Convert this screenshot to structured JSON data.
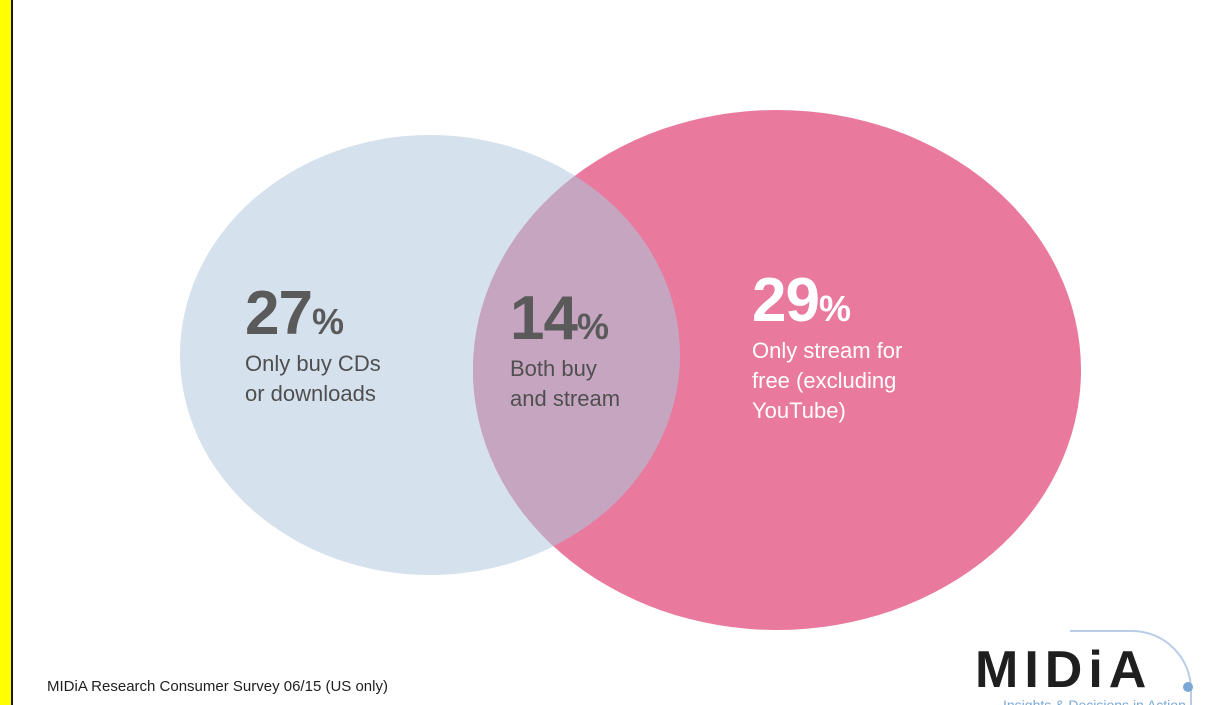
{
  "colors": {
    "left_circle": "#d5e1ed",
    "right_circle": "#e9799d",
    "overlap": "#c6a5c1",
    "frame_bar": "#ffff00"
  },
  "venn": {
    "left": {
      "value": "27",
      "unit": "%",
      "desc_line1": "Only buy CDs",
      "desc_line2": "or downloads"
    },
    "overlap": {
      "value": "14",
      "unit": "%",
      "desc_line1": "Both buy",
      "desc_line2": "and stream"
    },
    "right": {
      "value": "29",
      "unit": "%",
      "desc_line1": "Only stream for",
      "desc_line2": "free (excluding",
      "desc_line3": "YouTube)"
    }
  },
  "footer": {
    "source": "MIDiA Research Consumer  Survey 06/15 (US only)"
  },
  "logo": {
    "wordmark": "MIDiA",
    "tagline": "Insights & Decisions in Action"
  }
}
